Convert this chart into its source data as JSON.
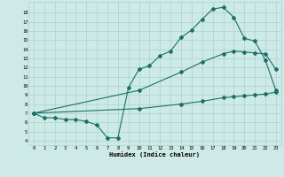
{
  "xlabel": "Humidex (Indice chaleur)",
  "bg_color": "#ceeae6",
  "grid_color": "#a8d4ce",
  "line_color": "#1a7068",
  "xlim": [
    -0.5,
    23.5
  ],
  "ylim": [
    3.5,
    19.2
  ],
  "xticks": [
    0,
    1,
    2,
    3,
    4,
    5,
    6,
    7,
    8,
    9,
    10,
    11,
    12,
    13,
    14,
    15,
    16,
    17,
    18,
    19,
    20,
    21,
    22,
    23
  ],
  "yticks": [
    4,
    5,
    6,
    7,
    8,
    9,
    10,
    11,
    12,
    13,
    14,
    15,
    16,
    17,
    18
  ],
  "curve1_x": [
    0,
    1,
    2,
    3,
    4,
    5,
    6,
    7,
    8,
    9,
    10,
    11,
    12,
    13,
    14,
    15,
    16,
    17,
    18,
    19,
    20,
    21,
    22,
    23
  ],
  "curve1_y": [
    7.0,
    6.5,
    6.5,
    6.3,
    6.3,
    6.1,
    5.7,
    4.3,
    4.3,
    9.8,
    11.8,
    12.2,
    13.3,
    13.8,
    15.3,
    16.1,
    17.3,
    18.4,
    18.6,
    17.5,
    15.2,
    14.9,
    12.8,
    9.5
  ],
  "curve2_x": [
    0,
    10,
    14,
    16,
    18,
    19,
    20,
    21,
    22,
    23
  ],
  "curve2_y": [
    7.0,
    9.5,
    11.5,
    12.6,
    13.5,
    13.8,
    13.7,
    13.6,
    13.5,
    11.8
  ],
  "curve3_x": [
    0,
    10,
    14,
    16,
    18,
    19,
    20,
    21,
    22,
    23
  ],
  "curve3_y": [
    7.0,
    7.5,
    8.0,
    8.3,
    8.7,
    8.8,
    8.9,
    9.0,
    9.1,
    9.3
  ],
  "markersize": 2.0,
  "linewidth": 0.8
}
